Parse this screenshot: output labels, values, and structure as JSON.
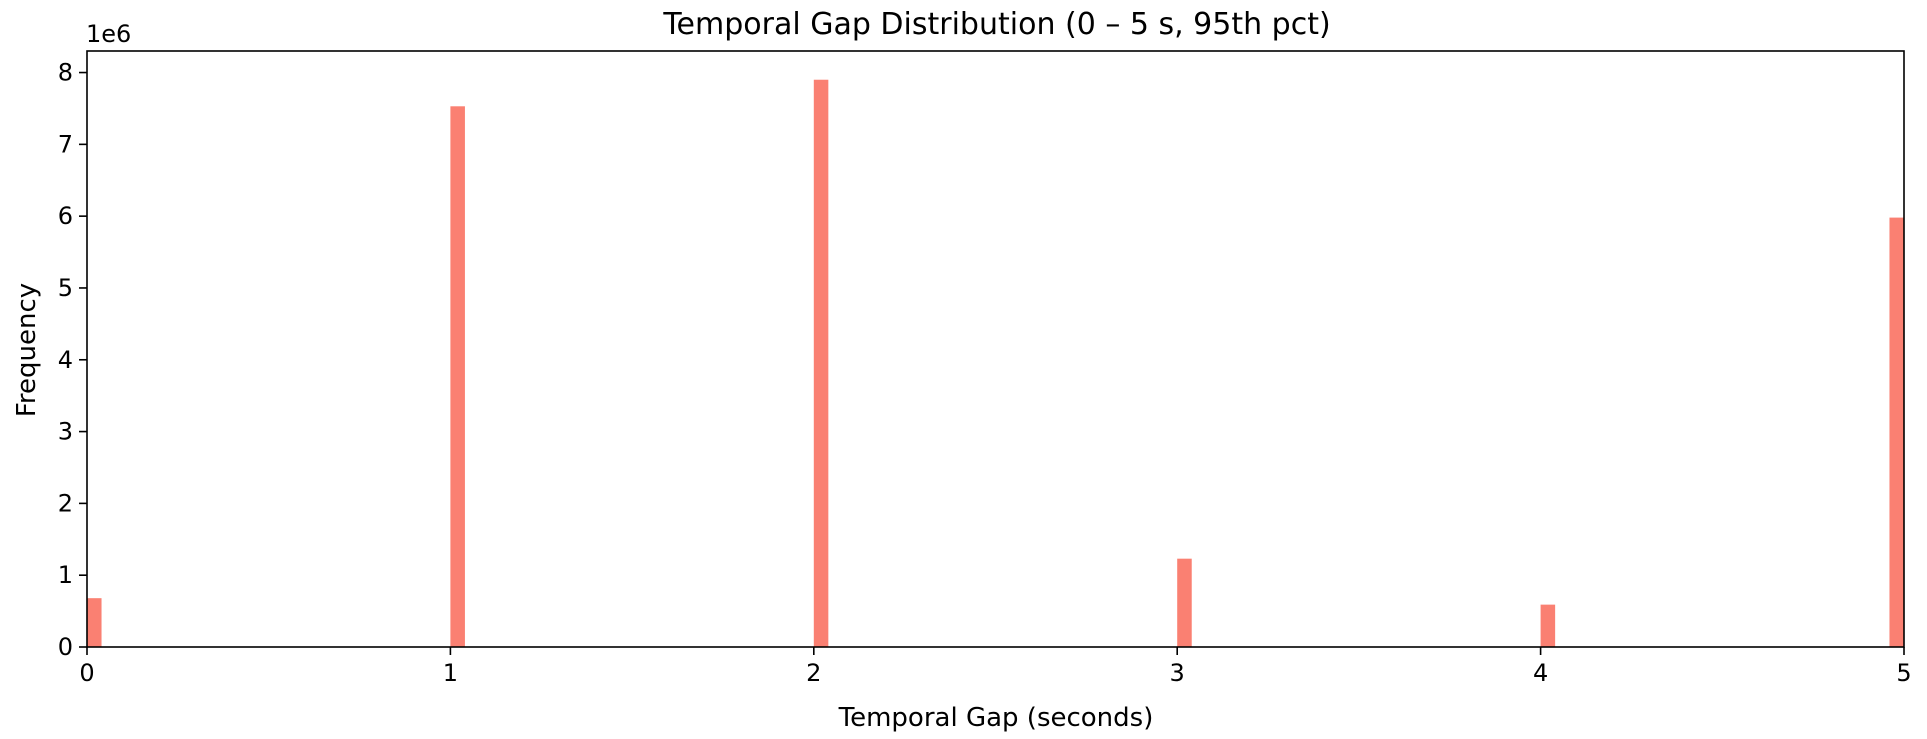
{
  "chart_data": {
    "type": "bar",
    "title": "Temporal Gap Distribution (0 – 5 s, 95th pct)",
    "xlabel": "Temporal Gap (seconds)",
    "ylabel": "Frequency",
    "y_offset_label": "1e6",
    "xlim": [
      0,
      5
    ],
    "ylim": [
      0,
      8.3
    ],
    "x_ticks": [
      "0",
      "1",
      "2",
      "3",
      "4",
      "5"
    ],
    "y_ticks": [
      "0",
      "1",
      "2",
      "3",
      "4",
      "5",
      "6",
      "7",
      "8"
    ],
    "bin_width": 0.04,
    "bar_color": "#fa8072",
    "grid": false,
    "bars": [
      {
        "x": 0.0,
        "value": 0.68
      },
      {
        "x": 1.0,
        "value": 7.53
      },
      {
        "x": 2.0,
        "value": 7.9
      },
      {
        "x": 3.0,
        "value": 1.23
      },
      {
        "x": 4.0,
        "value": 0.59
      },
      {
        "x": 4.96,
        "value": 5.98
      }
    ]
  }
}
